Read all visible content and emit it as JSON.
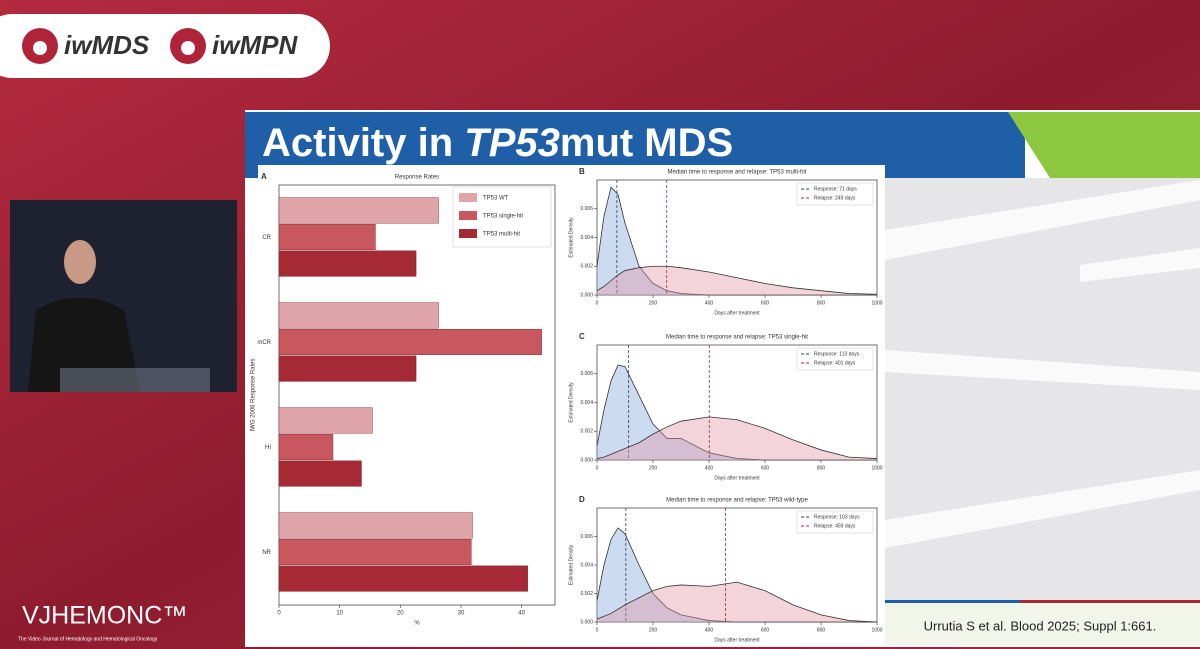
{
  "header": {
    "logos": [
      "iwMDS",
      "iwMPN"
    ]
  },
  "slide": {
    "title_parts": [
      "Activity in ",
      "TP53",
      "mut MDS"
    ],
    "citation": "Urrutia S et al. Blood 2025; Suppl 1:661."
  },
  "branding": {
    "logo": "VJHEMONC™",
    "tagline": "The Video Journal of Hematology and Hematological Oncology"
  },
  "chart_data": [
    {
      "type": "bar",
      "panel": "A",
      "title": "Response Rates",
      "xlabel": "%",
      "ylabel": "IWG 2006 Response Rates",
      "categories": [
        "CR",
        "mCR",
        "HI",
        "NR"
      ],
      "xlim": [
        0,
        45.5
      ],
      "xticks": [
        0,
        10,
        20,
        30,
        40
      ],
      "legend": "upper right",
      "series": [
        {
          "name": "TP53 WT",
          "color": "#e0a5a9",
          "values": [
            26.3,
            26.3,
            15.4,
            31.9
          ]
        },
        {
          "name": "TP53 single-hit",
          "color": "#c9575f",
          "values": [
            15.9,
            43.3,
            8.9,
            31.7
          ]
        },
        {
          "name": "TP53 multi-hit",
          "color": "#a52a35",
          "values": [
            22.6,
            22.6,
            13.6,
            41.0
          ]
        }
      ]
    },
    {
      "type": "area",
      "panel": "B",
      "title": "Median time to response and relapse: TP53 multi-hit",
      "xlabel": "Days after treatment",
      "ylabel": "Estimated Density",
      "x": [
        0,
        25,
        50,
        75,
        100,
        150,
        200,
        250,
        300,
        400,
        500,
        600,
        700,
        800,
        900,
        1000
      ],
      "xlim": [
        0,
        1000
      ],
      "xticks": [
        0,
        200,
        400,
        600,
        800,
        1000
      ],
      "ylim": [
        0,
        0.008
      ],
      "yticks": [
        {
          "value": 0,
          "label": "0.000"
        },
        0.002,
        0.004,
        0.006
      ],
      "legend": "upper right",
      "series": [
        {
          "name": "Response: 71 days",
          "color": "#7fa6d6",
          "median": 71,
          "values": [
            0.002,
            0.0055,
            0.0075,
            0.007,
            0.005,
            0.002,
            0.0008,
            0.0003,
            0.0001,
            0,
            0,
            0,
            0,
            0,
            0,
            0
          ]
        },
        {
          "name": "Relapse: 249 days",
          "color": "#e394a6",
          "median": 249,
          "values": [
            0.0003,
            0.0006,
            0.001,
            0.0014,
            0.0017,
            0.0019,
            0.002,
            0.002,
            0.0019,
            0.0016,
            0.0012,
            0.0008,
            0.0005,
            0.0003,
            0.0001,
            5e-05
          ]
        }
      ]
    },
    {
      "type": "area",
      "panel": "C",
      "title": "Median time to response and relapse: TP53 single-hit",
      "xlabel": "Days after treatment",
      "ylabel": "Estimated Density",
      "x": [
        0,
        25,
        50,
        75,
        100,
        150,
        200,
        250,
        300,
        400,
        500,
        600,
        700,
        800,
        900,
        1000
      ],
      "xlim": [
        0,
        1000
      ],
      "xticks": [
        0,
        200,
        400,
        600,
        800,
        1000
      ],
      "ylim": [
        0,
        0.008
      ],
      "yticks": [
        {
          "value": 0,
          "label": "0.000"
        },
        0.002,
        0.004,
        0.006
      ],
      "legend": "upper right",
      "series": [
        {
          "name": "Response: 113 days",
          "color": "#7fa6d6",
          "median": 113,
          "values": [
            0.001,
            0.0035,
            0.0055,
            0.0066,
            0.0065,
            0.0045,
            0.0025,
            0.0015,
            0.0015,
            0.0005,
            0.0001,
            0,
            0,
            0,
            0,
            0
          ]
        },
        {
          "name": "Relapse: 401 days",
          "color": "#e394a6",
          "median": 401,
          "values": [
            0.0001,
            0.0002,
            0.0004,
            0.0006,
            0.0008,
            0.0012,
            0.0018,
            0.0023,
            0.0027,
            0.003,
            0.0028,
            0.0022,
            0.0014,
            0.0007,
            0.0002,
            0.0001
          ]
        }
      ]
    },
    {
      "type": "area",
      "panel": "D",
      "title": "Median time to response and relapse: TP53 wild-type",
      "xlabel": "Days after treatment",
      "ylabel": "Estimated Density",
      "x": [
        0,
        25,
        50,
        75,
        100,
        150,
        200,
        250,
        300,
        400,
        500,
        600,
        700,
        800,
        900,
        1000
      ],
      "xlim": [
        0,
        1000
      ],
      "xticks": [
        0,
        200,
        400,
        600,
        800,
        1000
      ],
      "ylim": [
        0,
        0.008
      ],
      "yticks": [
        {
          "value": 0,
          "label": "0.000"
        },
        0.002,
        0.004,
        0.006
      ],
      "legend": "upper right",
      "series": [
        {
          "name": "Response: 103 days",
          "color": "#7fa6d6",
          "median": 103,
          "values": [
            0.0015,
            0.004,
            0.0058,
            0.0066,
            0.0062,
            0.004,
            0.002,
            0.001,
            0.0005,
            0.0001,
            0,
            0,
            0,
            0,
            0,
            0
          ]
        },
        {
          "name": "Relapse: 459 days",
          "color": "#e394a6",
          "median": 459,
          "values": [
            0.0002,
            0.0004,
            0.0006,
            0.0009,
            0.0012,
            0.0017,
            0.0022,
            0.0025,
            0.0026,
            0.0025,
            0.0028,
            0.0022,
            0.0012,
            0.0005,
            0.0001,
            0
          ]
        }
      ]
    }
  ]
}
